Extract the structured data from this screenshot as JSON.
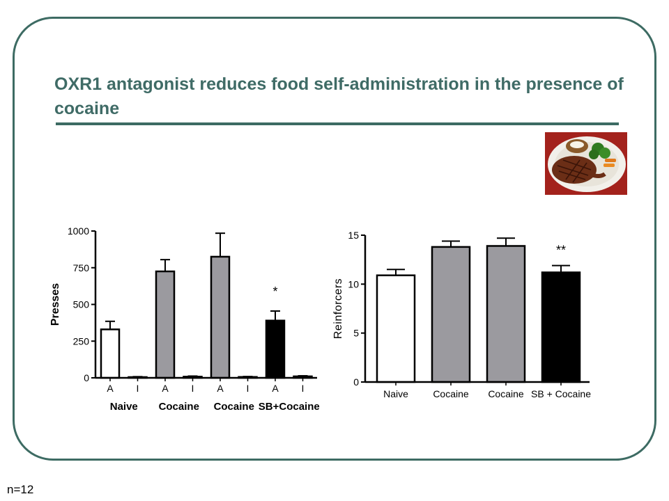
{
  "slide": {
    "title": "OXR1 antagonist reduces food self-administration in the presence of cocaine",
    "footnote": "n=12",
    "colors": {
      "frame": "#3d6b63",
      "title": "#3f6b66"
    },
    "image_icon": "food-plate-steak-icon"
  },
  "chart_data": [
    {
      "type": "bar",
      "ylabel": "Presses",
      "ylim": [
        0,
        1000
      ],
      "yticks": [
        0,
        250,
        500,
        750,
        1000
      ],
      "categories": [
        "A",
        "I",
        "A",
        "I",
        "A",
        "I",
        "A",
        "I"
      ],
      "group_labels": [
        "Naive",
        "Cocaine",
        "Cocaine",
        "SB+Cocaine"
      ],
      "values": [
        330,
        5,
        725,
        8,
        825,
        6,
        390,
        10
      ],
      "errors": [
        55,
        3,
        80,
        4,
        160,
        3,
        65,
        4
      ],
      "fills": [
        "#ffffff",
        "#ffffff",
        "#9b9a9f",
        "#9b9a9f",
        "#9b9a9f",
        "#9b9a9f",
        "#000000",
        "#000000"
      ],
      "annotations": [
        {
          "index": 6,
          "text": "*"
        }
      ]
    },
    {
      "type": "bar",
      "ylabel": "Reinforcers",
      "ylim": [
        0,
        15
      ],
      "yticks": [
        0,
        5,
        10,
        15
      ],
      "categories": [
        "Naive",
        "Cocaine",
        "Cocaine",
        "SB + Cocaine"
      ],
      "values": [
        10.9,
        13.8,
        13.9,
        11.2
      ],
      "errors": [
        0.6,
        0.6,
        0.8,
        0.7
      ],
      "fills": [
        "#ffffff",
        "#9b9a9f",
        "#9b9a9f",
        "#000000"
      ],
      "annotations": [
        {
          "index": 3,
          "text": "**"
        }
      ]
    }
  ]
}
